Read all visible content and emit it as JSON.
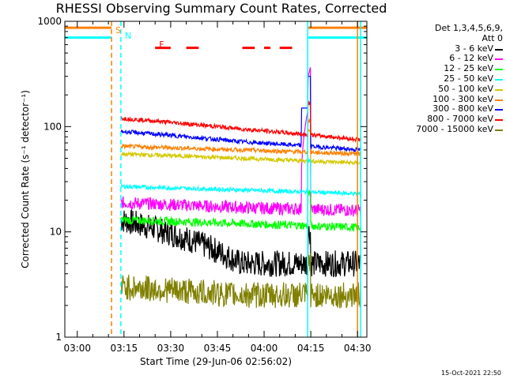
{
  "title": "RHESSI Observing Summary Count Rates, Corrected",
  "footer_timestamp": "15-Oct-2021 22:50",
  "chart_data": {
    "type": "line",
    "xlabel": "Start Time (29-Jun-06 02:56:02)",
    "ylabel": "Corrected Count Rate (s⁻¹ detector⁻¹)",
    "yscale": "log",
    "ylim": [
      1,
      1000
    ],
    "xlim": [
      "02:56",
      "04:33"
    ],
    "x_ticks": [
      "03:00",
      "03:15",
      "03:30",
      "03:45",
      "04:00",
      "04:15",
      "04:30"
    ],
    "y_ticks": [
      "1",
      "10",
      "100",
      "1000"
    ],
    "legend_header": [
      "Det 1,3,4,5,6,9,",
      "Att 0"
    ],
    "legend_position": "right",
    "series": [
      {
        "name": "3 - 6 keV",
        "color": "#000000"
      },
      {
        "name": "6 - 12 keV",
        "color": "#ff00ff"
      },
      {
        "name": "12 - 25 keV",
        "color": "#00ff00"
      },
      {
        "name": "25 - 50 keV",
        "color": "#00ffff"
      },
      {
        "name": "50 - 100 keV",
        "color": "#d4c800"
      },
      {
        "name": "100 - 300 keV",
        "color": "#ff8000"
      },
      {
        "name": "300 - 800 keV",
        "color": "#0000ff"
      },
      {
        "name": "800 - 7000 keV",
        "color": "#ff0000"
      },
      {
        "name": "7000 - 15000 keV",
        "color": "#808000"
      }
    ],
    "approx_levels": {
      "800 - 7000 keV": {
        "start": 120,
        "mid": 95,
        "end": 75
      },
      "100 - 300 keV": {
        "start": 65,
        "mid": 60,
        "end": 55
      },
      "300 - 800 keV": {
        "start": 90,
        "mid": 72,
        "end": 60
      },
      "50 - 100 keV": {
        "start": 55,
        "mid": 50,
        "end": 45
      },
      "25 - 50 keV": {
        "start": 27,
        "mid": 25,
        "end": 23
      },
      "6 - 12 keV": {
        "start": 19,
        "mid": 17,
        "end": 16
      },
      "12 - 25 keV": {
        "start": 13,
        "mid": 12,
        "end": 11
      },
      "3 - 6 keV": {
        "start": 13,
        "mid": 5,
        "end": 5
      },
      "7000 - 15000 keV": {
        "start": 3,
        "mid": 2.5,
        "end": 2.5
      }
    },
    "markers": [
      {
        "label": "S",
        "color": "#ff8000",
        "time": "03:11"
      },
      {
        "label": "N",
        "color": "#00ffff",
        "time": "03:14"
      },
      {
        "label": "F",
        "color": "#ff0000",
        "time": "03:25"
      }
    ],
    "status_bars": [
      {
        "name": "S",
        "color": "#ff8000",
        "log_level": 870
      },
      {
        "name": "N",
        "color": "#00ffff",
        "log_level": 700
      },
      {
        "name": "F",
        "color": "#ff0000",
        "log_level": 560,
        "segments": [
          [
            "03:25",
            "03:30"
          ],
          [
            "03:35",
            "03:39"
          ],
          [
            "03:53",
            "03:57"
          ],
          [
            "04:00",
            "04:02"
          ],
          [
            "04:05",
            "04:09"
          ]
        ]
      }
    ],
    "vertical_lines": [
      {
        "time": "03:11",
        "color": "#ff8000",
        "style": "dashed"
      },
      {
        "time": "03:14",
        "color": "#00ffff",
        "style": "dashed"
      },
      {
        "time": "04:14",
        "color": "#00ffff",
        "style": "solid"
      },
      {
        "time": "04:30",
        "color": "#ff8000",
        "style": "solid"
      },
      {
        "time": "04:31",
        "color": "#00ffff",
        "style": "solid"
      }
    ],
    "data_gaps": [
      [
        "02:56",
        "03:14"
      ],
      [
        "04:31",
        "04:33"
      ]
    ],
    "grid": false
  }
}
